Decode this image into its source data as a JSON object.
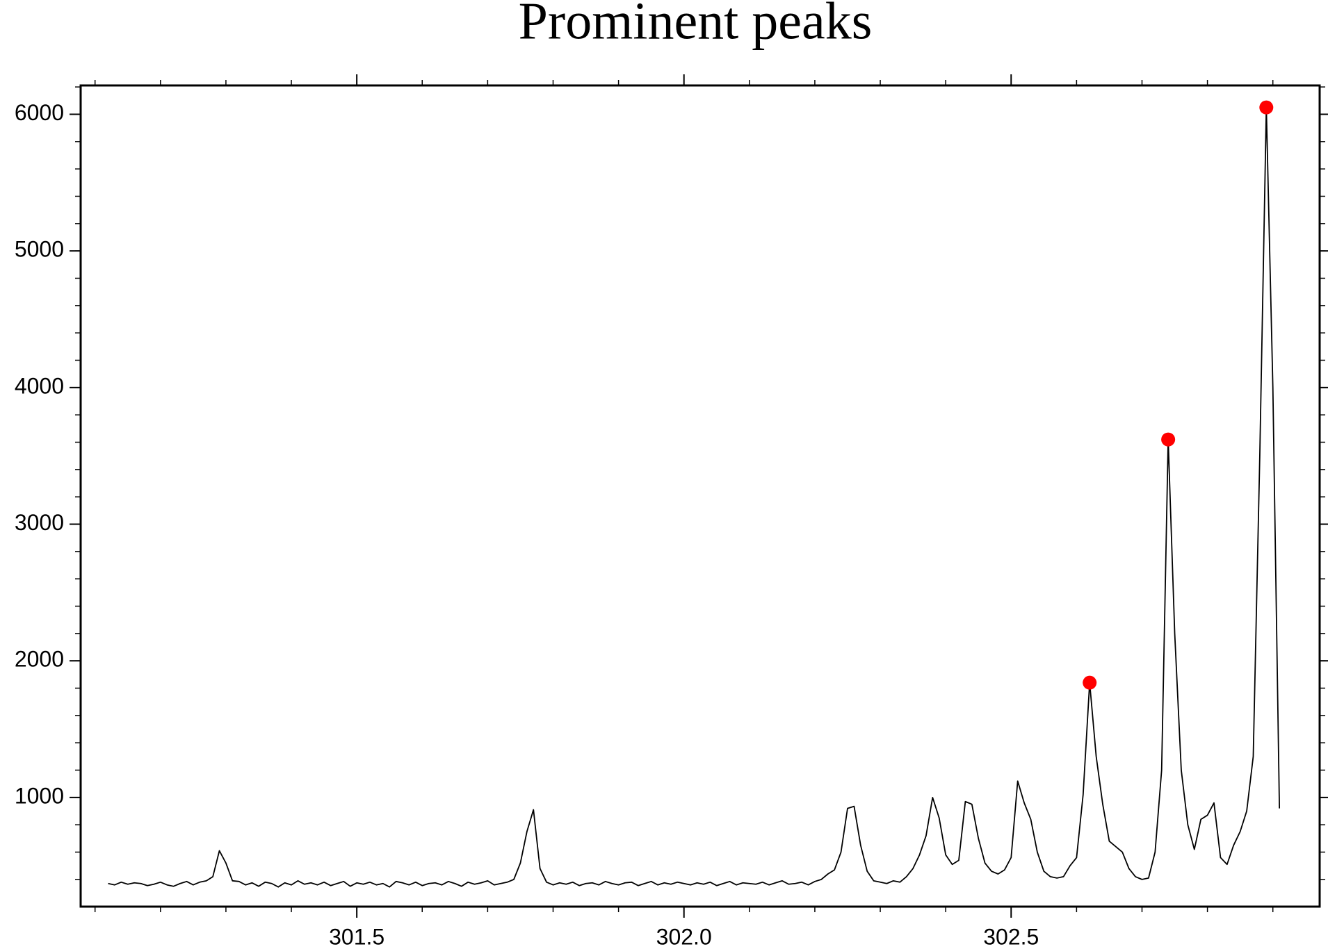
{
  "chart_data": {
    "type": "line",
    "title": "Prominent peaks",
    "xlim": [
      301.078,
      302.9715
    ],
    "ylim": [
      201,
      6211
    ],
    "xticks": [
      301.5,
      {
        "value": 302,
        "label": "302.0"
      },
      302.5
    ],
    "yticks": [
      1000,
      2000,
      3000,
      4000,
      5000,
      6000
    ],
    "xminorstep": 0.1,
    "yminorstep": 200,
    "series": [
      {
        "type": "line",
        "color": "#000000",
        "x": [
          301.12,
          301.13,
          301.14,
          301.15,
          301.16,
          301.17,
          301.18,
          301.19,
          301.2,
          301.21,
          301.22,
          301.23,
          301.24,
          301.25,
          301.26,
          301.27,
          301.28,
          301.29,
          301.3,
          301.31,
          301.32,
          301.33,
          301.34,
          301.35,
          301.36,
          301.37,
          301.38,
          301.39,
          301.4,
          301.41,
          301.42,
          301.43,
          301.44,
          301.45,
          301.46,
          301.47,
          301.48,
          301.49,
          301.5,
          301.51,
          301.52,
          301.53,
          301.54,
          301.55,
          301.56,
          301.57,
          301.58,
          301.59,
          301.6,
          301.61,
          301.62,
          301.63,
          301.64,
          301.65,
          301.66,
          301.67,
          301.68,
          301.69,
          301.7,
          301.71,
          301.72,
          301.73,
          301.74,
          301.75,
          301.76,
          301.77,
          301.78,
          301.79,
          301.8,
          301.81,
          301.82,
          301.83,
          301.84,
          301.85,
          301.86,
          301.87,
          301.88,
          301.89,
          301.9,
          301.91,
          301.92,
          301.93,
          301.94,
          301.95,
          301.96,
          301.97,
          301.98,
          301.99,
          302.0,
          302.01,
          302.02,
          302.03,
          302.04,
          302.05,
          302.06,
          302.07,
          302.08,
          302.09,
          302.1,
          302.11,
          302.12,
          302.13,
          302.14,
          302.15,
          302.16,
          302.17,
          302.18,
          302.19,
          302.2,
          302.21,
          302.22,
          302.23,
          302.24,
          302.25,
          302.26,
          302.27,
          302.28,
          302.29,
          302.3,
          302.31,
          302.32,
          302.33,
          302.34,
          302.35,
          302.36,
          302.37,
          302.38,
          302.39,
          302.4,
          302.41,
          302.42,
          302.43,
          302.44,
          302.45,
          302.46,
          302.47,
          302.48,
          302.49,
          302.5,
          302.51,
          302.52,
          302.53,
          302.54,
          302.55,
          302.56,
          302.57,
          302.58,
          302.59,
          302.6,
          302.61,
          302.62,
          302.63,
          302.64,
          302.65,
          302.66,
          302.67,
          302.68,
          302.69,
          302.7,
          302.71,
          302.72,
          302.73,
          302.74,
          302.75,
          302.76,
          302.77,
          302.78,
          302.79,
          302.8,
          302.81,
          302.82,
          302.83,
          302.84,
          302.85,
          302.86,
          302.87,
          302.88,
          302.89,
          302.9,
          302.91
        ],
        "values": [
          370,
          360,
          380,
          365,
          375,
          370,
          355,
          365,
          380,
          360,
          350,
          370,
          385,
          360,
          380,
          390,
          420,
          610,
          520,
          390,
          385,
          360,
          375,
          350,
          380,
          370,
          345,
          375,
          360,
          390,
          365,
          375,
          360,
          380,
          355,
          370,
          385,
          350,
          375,
          365,
          380,
          360,
          370,
          345,
          385,
          375,
          360,
          380,
          355,
          370,
          375,
          360,
          385,
          370,
          350,
          380,
          365,
          375,
          390,
          360,
          370,
          380,
          400,
          520,
          750,
          910,
          480,
          380,
          360,
          375,
          365,
          380,
          355,
          370,
          375,
          360,
          385,
          370,
          360,
          375,
          380,
          355,
          370,
          385,
          360,
          375,
          365,
          380,
          370,
          360,
          375,
          365,
          380,
          355,
          370,
          385,
          360,
          375,
          370,
          365,
          380,
          360,
          375,
          390,
          365,
          370,
          380,
          360,
          385,
          400,
          440,
          470,
          600,
          920,
          935,
          650,
          460,
          390,
          380,
          370,
          390,
          380,
          420,
          480,
          580,
          720,
          1000,
          850,
          580,
          510,
          540,
          970,
          950,
          700,
          520,
          460,
          440,
          470,
          560,
          1120,
          960,
          840,
          600,
          460,
          420,
          410,
          420,
          500,
          560,
          1020,
          1840,
          1300,
          950,
          680,
          640,
          600,
          480,
          420,
          400,
          410,
          600,
          1200,
          3620,
          2200,
          1200,
          800,
          620,
          840,
          870,
          960,
          560,
          510,
          650,
          750,
          900,
          1300,
          3500,
          6050,
          4000,
          920
        ]
      },
      {
        "type": "scatter",
        "color": "#ff0000",
        "x": [
          302.62,
          302.74,
          302.89
        ],
        "values": [
          1840,
          3620,
          6050
        ]
      }
    ]
  }
}
